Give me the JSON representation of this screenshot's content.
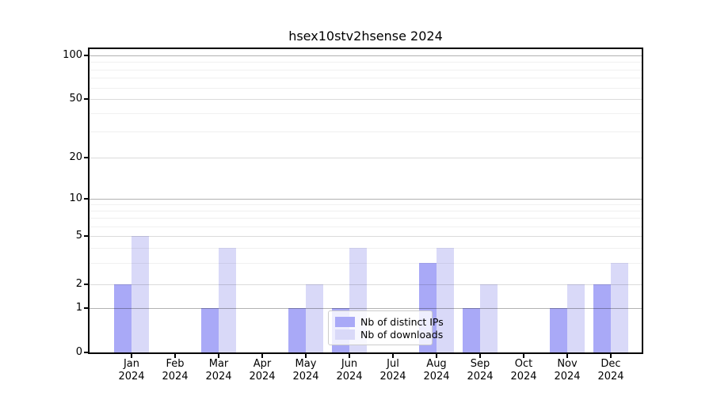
{
  "chart_data": {
    "type": "bar",
    "title": "hsex10stv2hsense 2024",
    "categories": [
      "Jan",
      "Feb",
      "Mar",
      "Apr",
      "May",
      "Jun",
      "Jul",
      "Aug",
      "Sep",
      "Oct",
      "Nov",
      "Dec"
    ],
    "x_tick_year": "2024",
    "series": [
      {
        "name": "Nb of distinct IPs",
        "color": "#a9a9f7",
        "values": [
          2,
          0,
          1,
          0,
          1,
          1,
          0,
          3,
          1,
          0,
          1,
          2
        ]
      },
      {
        "name": "Nb of downloads",
        "color": "#d9d9f8",
        "values": [
          5,
          0,
          4,
          0,
          2,
          4,
          0,
          4,
          2,
          0,
          2,
          3
        ]
      }
    ],
    "yticks": [
      0,
      1,
      2,
      5,
      10,
      20,
      50,
      100
    ],
    "yticks_minor": [
      3,
      4,
      6,
      7,
      8,
      9,
      30,
      40,
      60,
      70,
      80,
      90
    ],
    "ylim": [
      0,
      100
    ],
    "yscale": "log-like with linear segment 0-1",
    "grid": true,
    "legend_position": "lower center",
    "colors": {
      "grid_power10": "rgba(0,0,0,0.30)",
      "grid_major": "rgba(0,0,0,0.14)",
      "grid_minor": "rgba(0,0,0,0.06)",
      "axis": "#000000",
      "background": "#ffffff"
    }
  }
}
